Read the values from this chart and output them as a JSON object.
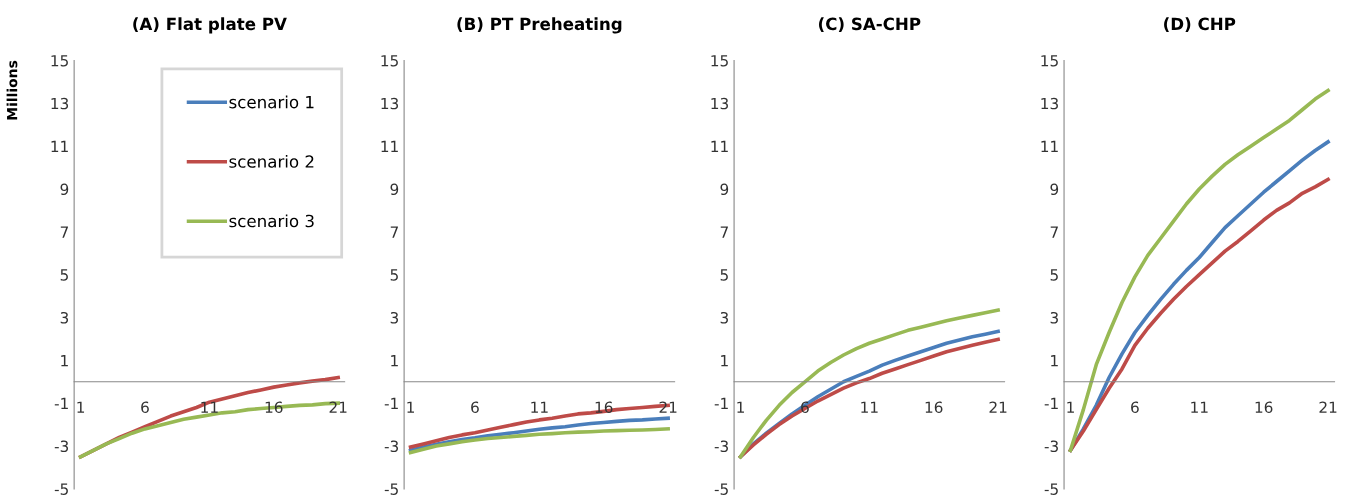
{
  "chart_data": [
    {
      "type": "line",
      "title": "(A) Flat plate PV",
      "ylabel": "Millions",
      "x": [
        1,
        2,
        3,
        4,
        5,
        6,
        7,
        8,
        9,
        10,
        11,
        12,
        13,
        14,
        15,
        16,
        17,
        18,
        19,
        20,
        21
      ],
      "xlim": [
        0.5,
        21.5
      ],
      "xticks": [
        1,
        6,
        11,
        16,
        21
      ],
      "ylim": [
        -5,
        15
      ],
      "yticks": [
        -5,
        -3,
        -1,
        1,
        3,
        5,
        7,
        9,
        11,
        13,
        15
      ],
      "legend": "top right",
      "series": [
        {
          "name": "scenario 1",
          "color": "#4a7ebb",
          "values": [
            null,
            null,
            null,
            null,
            null,
            null,
            null,
            null,
            null,
            null,
            null,
            null,
            null,
            null,
            null,
            null,
            null,
            null,
            null,
            null,
            null
          ]
        },
        {
          "name": "scenario 2",
          "color": "#be4b48",
          "values": [
            -3.5,
            -3.2,
            -2.9,
            -2.6,
            -2.35,
            -2.1,
            -1.85,
            -1.6,
            -1.4,
            -1.2,
            -0.95,
            -0.8,
            -0.65,
            -0.5,
            -0.38,
            -0.25,
            -0.15,
            -0.05,
            0.03,
            0.1,
            0.2
          ]
        },
        {
          "name": "scenario 3",
          "color": "#98b954",
          "values": [
            -3.5,
            -3.2,
            -2.9,
            -2.65,
            -2.4,
            -2.2,
            -2.05,
            -1.9,
            -1.75,
            -1.65,
            -1.55,
            -1.45,
            -1.4,
            -1.3,
            -1.25,
            -1.2,
            -1.15,
            -1.1,
            -1.08,
            -1.02,
            -1.0
          ]
        }
      ]
    },
    {
      "type": "line",
      "title": "(B) PT Preheating",
      "x": [
        1,
        2,
        3,
        4,
        5,
        6,
        7,
        8,
        9,
        10,
        11,
        12,
        13,
        14,
        15,
        16,
        17,
        18,
        19,
        20,
        21
      ],
      "xlim": [
        0.5,
        21.5
      ],
      "xticks": [
        1,
        6,
        11,
        16,
        21
      ],
      "ylim": [
        -5,
        15
      ],
      "yticks": [
        -5,
        -3,
        -1,
        1,
        3,
        5,
        7,
        9,
        11,
        13,
        15
      ],
      "series": [
        {
          "color": "#4a7ebb",
          "values": [
            -3.2,
            -3.05,
            -2.92,
            -2.8,
            -2.7,
            -2.62,
            -2.52,
            -2.45,
            -2.38,
            -2.3,
            -2.22,
            -2.15,
            -2.1,
            -2.02,
            -1.95,
            -1.9,
            -1.85,
            -1.8,
            -1.78,
            -1.74,
            -1.7
          ]
        },
        {
          "color": "#be4b48",
          "values": [
            -3.05,
            -2.9,
            -2.75,
            -2.6,
            -2.48,
            -2.38,
            -2.25,
            -2.12,
            -2.0,
            -1.88,
            -1.78,
            -1.7,
            -1.6,
            -1.5,
            -1.45,
            -1.38,
            -1.3,
            -1.25,
            -1.2,
            -1.15,
            -1.1
          ]
        },
        {
          "color": "#98b954",
          "values": [
            -3.3,
            -3.15,
            -3.0,
            -2.9,
            -2.8,
            -2.72,
            -2.65,
            -2.6,
            -2.55,
            -2.5,
            -2.45,
            -2.42,
            -2.38,
            -2.35,
            -2.33,
            -2.3,
            -2.28,
            -2.26,
            -2.25,
            -2.23,
            -2.2
          ]
        }
      ]
    },
    {
      "type": "line",
      "title": "(C) SA-CHP",
      "x": [
        1,
        2,
        3,
        4,
        5,
        6,
        7,
        8,
        9,
        10,
        11,
        12,
        13,
        14,
        15,
        16,
        17,
        18,
        19,
        20,
        21
      ],
      "xlim": [
        0.5,
        21.5
      ],
      "xticks": [
        1,
        6,
        11,
        16,
        21
      ],
      "ylim": [
        -5,
        15
      ],
      "yticks": [
        -5,
        -3,
        -1,
        1,
        3,
        5,
        7,
        9,
        11,
        13,
        15
      ],
      "series": [
        {
          "color": "#4a7ebb",
          "values": [
            -3.5,
            -2.9,
            -2.4,
            -1.95,
            -1.5,
            -1.1,
            -0.7,
            -0.35,
            0.0,
            0.25,
            0.5,
            0.78,
            1.0,
            1.2,
            1.4,
            1.6,
            1.8,
            1.95,
            2.1,
            2.22,
            2.35
          ]
        },
        {
          "color": "#be4b48",
          "values": [
            -3.5,
            -2.95,
            -2.45,
            -2.0,
            -1.6,
            -1.25,
            -0.9,
            -0.6,
            -0.3,
            -0.05,
            0.15,
            0.4,
            0.6,
            0.8,
            1.0,
            1.2,
            1.4,
            1.55,
            1.7,
            1.85,
            1.98
          ]
        },
        {
          "color": "#98b954",
          "values": [
            -3.5,
            -2.6,
            -1.8,
            -1.1,
            -0.5,
            0.0,
            0.5,
            0.9,
            1.25,
            1.55,
            1.8,
            2.0,
            2.2,
            2.4,
            2.55,
            2.7,
            2.85,
            2.98,
            3.1,
            3.22,
            3.35
          ]
        }
      ]
    },
    {
      "type": "line",
      "title": "(D) CHP",
      "x": [
        1,
        2,
        3,
        4,
        5,
        6,
        7,
        8,
        9,
        10,
        11,
        12,
        13,
        14,
        15,
        16,
        17,
        18,
        19,
        20,
        21
      ],
      "xlim": [
        0.5,
        21.5
      ],
      "xticks": [
        1,
        6,
        11,
        16,
        21
      ],
      "ylim": [
        -5,
        15
      ],
      "yticks": [
        -5,
        -3,
        -1,
        1,
        3,
        5,
        7,
        9,
        11,
        13,
        15
      ],
      "series": [
        {
          "color": "#4a7ebb",
          "values": [
            -3.2,
            -2.2,
            -1.1,
            0.2,
            1.3,
            2.3,
            3.1,
            3.85,
            4.55,
            5.2,
            5.8,
            6.5,
            7.2,
            7.75,
            8.3,
            8.85,
            9.35,
            9.85,
            10.35,
            10.8,
            11.2
          ]
        },
        {
          "color": "#be4b48",
          "values": [
            -3.2,
            -2.3,
            -1.3,
            -0.3,
            0.6,
            1.7,
            2.5,
            3.2,
            3.85,
            4.45,
            5.0,
            5.55,
            6.1,
            6.55,
            7.05,
            7.55,
            8.0,
            8.35,
            8.8,
            9.1,
            9.45
          ]
        },
        {
          "color": "#98b954",
          "values": [
            -3.2,
            -1.3,
            0.8,
            2.3,
            3.7,
            4.9,
            5.9,
            6.7,
            7.5,
            8.3,
            9.0,
            9.6,
            10.15,
            10.6,
            11.0,
            11.4,
            11.8,
            12.2,
            12.7,
            13.2,
            13.6
          ]
        }
      ]
    }
  ]
}
